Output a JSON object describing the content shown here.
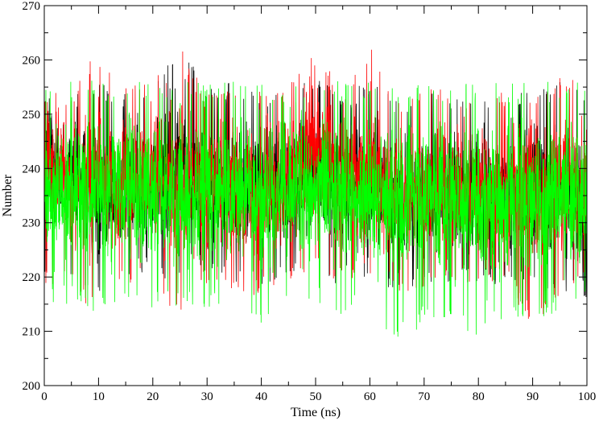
{
  "chart_data": {
    "type": "line",
    "title": "",
    "xlabel": "Time (ns)",
    "ylabel": "Number",
    "xlim": [
      0,
      100
    ],
    "ylim": [
      200,
      270
    ],
    "xticks": [
      0,
      10,
      20,
      30,
      40,
      50,
      60,
      70,
      80,
      90,
      100
    ],
    "yticks": [
      200,
      210,
      220,
      230,
      240,
      250,
      260,
      270
    ],
    "grid": false,
    "legend": "none",
    "series": [
      {
        "color": "#000000",
        "x": [
          0,
          5,
          10,
          15,
          20,
          25,
          30,
          35,
          40,
          45,
          50,
          55,
          60,
          65,
          70,
          75,
          80,
          85,
          90,
          95,
          100
        ],
        "y_mean": [
          244,
          238,
          236,
          237,
          238,
          241,
          237,
          236,
          237,
          237,
          239,
          236,
          238,
          234,
          236,
          236,
          235,
          236,
          236,
          235,
          232
        ],
        "y_min": [
          218,
          218,
          215,
          220,
          219,
          218,
          219,
          218,
          218,
          220,
          221,
          218,
          220,
          217,
          219,
          219,
          218,
          219,
          216,
          216,
          216
        ],
        "y_max": [
          256,
          256,
          256,
          254,
          257,
          265,
          255,
          256,
          255,
          256,
          258,
          254,
          256,
          254,
          255,
          254,
          254,
          254,
          255,
          257,
          255
        ]
      },
      {
        "color": "#ff0000",
        "x": [
          0,
          5,
          10,
          15,
          20,
          25,
          30,
          35,
          40,
          45,
          50,
          55,
          60,
          65,
          70,
          75,
          80,
          85,
          90,
          95,
          100
        ],
        "y_mean": [
          241,
          238,
          238,
          237,
          238,
          239,
          236,
          237,
          237,
          238,
          244,
          238,
          241,
          235,
          236,
          236,
          236,
          236,
          236,
          237,
          236
        ],
        "y_min": [
          219,
          217,
          213,
          219,
          218,
          212,
          218,
          217,
          216,
          218,
          220,
          218,
          219,
          217,
          218,
          218,
          219,
          218,
          210,
          216,
          217
        ],
        "y_max": [
          254,
          254,
          263,
          255,
          256,
          263,
          254,
          255,
          256,
          256,
          265,
          255,
          264,
          254,
          255,
          255,
          255,
          255,
          255,
          258,
          257
        ]
      },
      {
        "color": "#00ff00",
        "x": [
          0,
          5,
          10,
          15,
          20,
          25,
          30,
          35,
          40,
          45,
          50,
          55,
          60,
          65,
          70,
          75,
          80,
          85,
          90,
          95,
          100
        ],
        "y_mean": [
          235,
          236,
          235,
          235,
          236,
          236,
          235,
          235,
          235,
          235,
          236,
          235,
          235,
          233,
          235,
          234,
          234,
          234,
          234,
          235,
          233
        ],
        "y_min": [
          214,
          215,
          213,
          214,
          214,
          213,
          214,
          214,
          211,
          214,
          215,
          213,
          214,
          208,
          211,
          213,
          208,
          213,
          212,
          213,
          214
        ],
        "y_max": [
          256,
          257,
          256,
          256,
          256,
          256,
          256,
          256,
          256,
          256,
          257,
          256,
          256,
          255,
          256,
          256,
          256,
          256,
          256,
          256,
          256
        ]
      }
    ]
  }
}
